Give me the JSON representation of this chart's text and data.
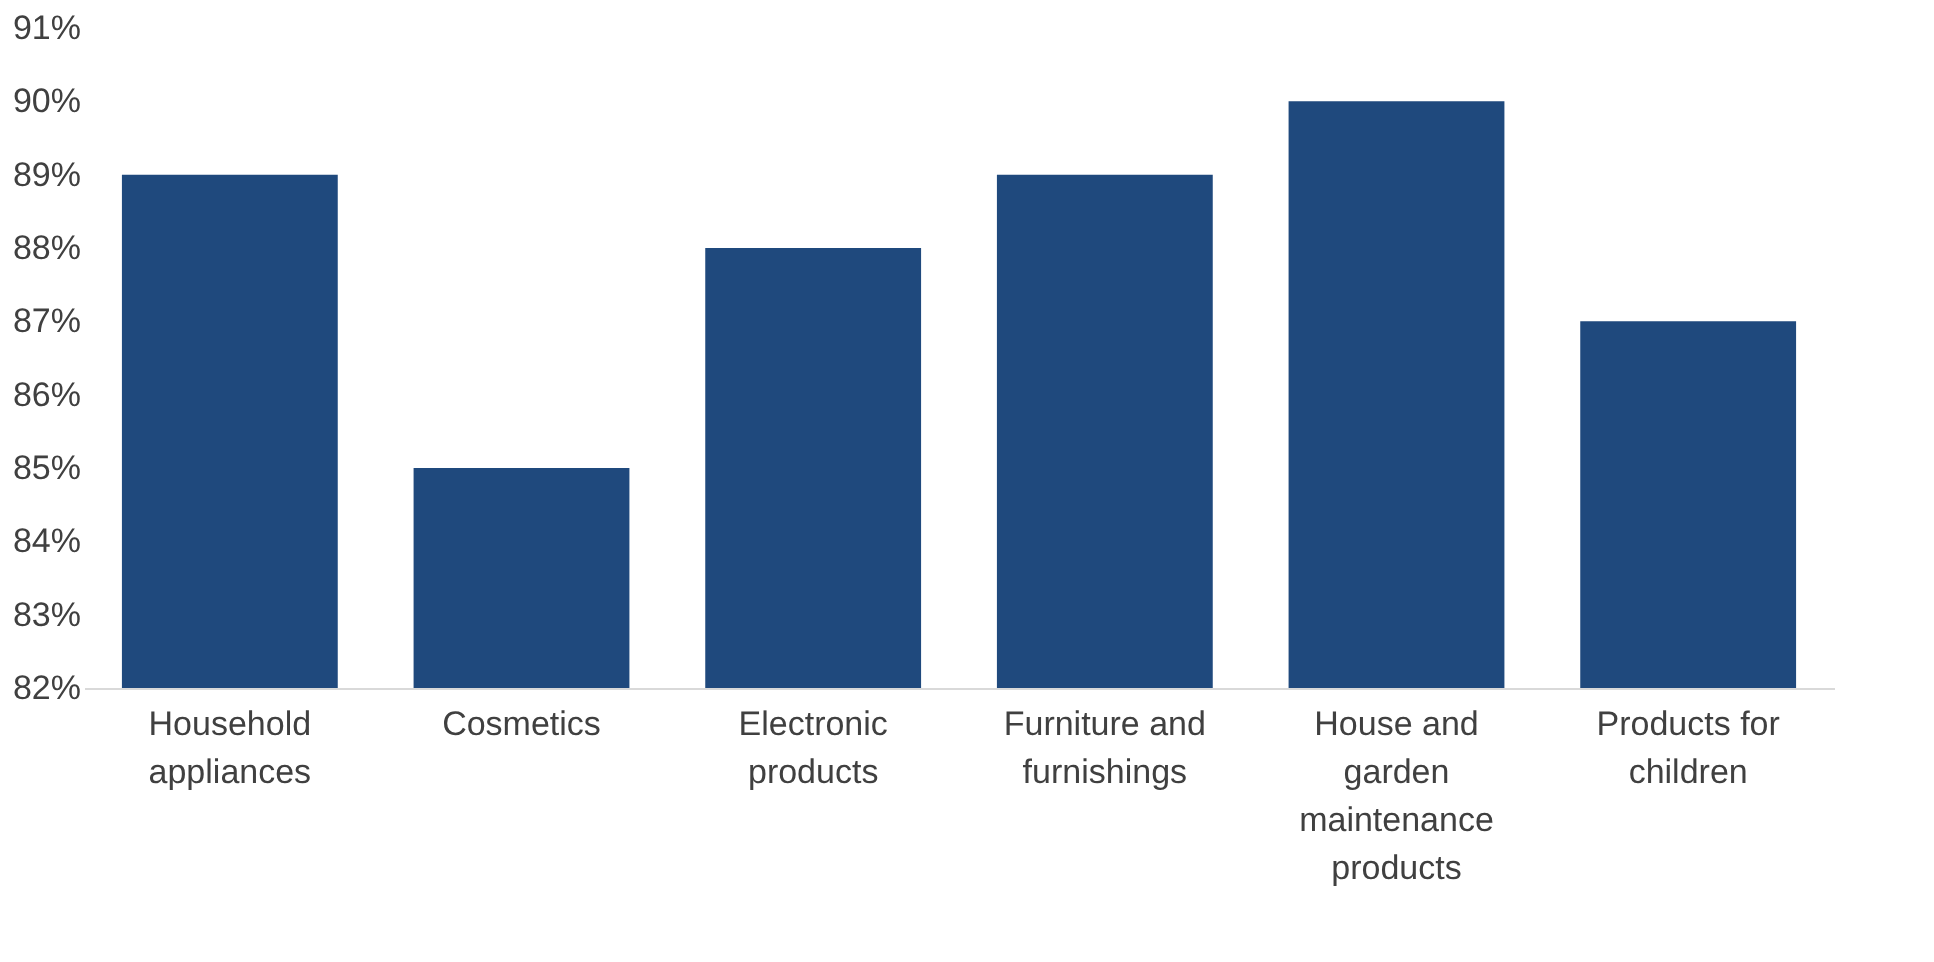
{
  "chart_data": {
    "type": "bar",
    "categories": [
      "Household appliances",
      "Cosmetics",
      "Electronic products",
      "Furniture and furnishings",
      "House and garden maintenance products",
      "Products for children"
    ],
    "values": [
      89,
      85,
      88,
      89,
      90,
      87
    ],
    "color": "#1f497d",
    "ylim": [
      82,
      91
    ],
    "yticks": [
      {
        "value": 82,
        "label": "82%"
      },
      {
        "value": 83,
        "label": "83%"
      },
      {
        "value": 84,
        "label": "84%"
      },
      {
        "value": 85,
        "label": "85%"
      },
      {
        "value": 86,
        "label": "86%"
      },
      {
        "value": 87,
        "label": "87%"
      },
      {
        "value": 88,
        "label": "88%"
      },
      {
        "value": 89,
        "label": "89%"
      },
      {
        "value": 90,
        "label": "90%"
      },
      {
        "value": 91,
        "label": "91%"
      }
    ],
    "grid": false
  }
}
